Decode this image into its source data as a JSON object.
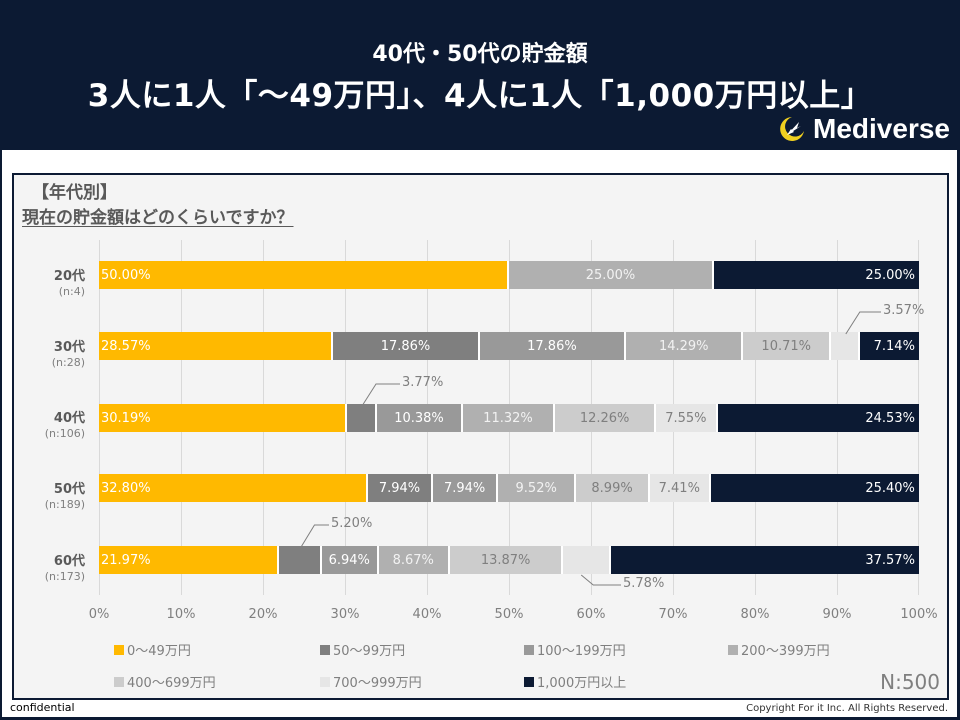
{
  "header": {
    "subtitle": "40代・50代の貯金額",
    "title": "3人に1人「～49万円」、4人に1人「1,000万円以上」",
    "logo_text": "Mediverse"
  },
  "question": {
    "tag": "【年代別】",
    "text": "現在の貯金額はどのくらいですか？"
  },
  "colors": {
    "0-49": "#ffb900",
    "50-99": "#7f7f7f",
    "100-199": "#999999",
    "200-399": "#b0b0b0",
    "400-699": "#cccccc",
    "700-999": "#e6e6e6",
    "1000+": "#0c1a33"
  },
  "chart_data": {
    "type": "bar",
    "orientation": "horizontal",
    "stacked": "100%",
    "title": "現在の貯金額はどのくらいですか？",
    "categories": [
      "20代 (n:4)",
      "30代 (n:28)",
      "40代 (n:106)",
      "50代 (n:189)",
      "60代 (n:173)"
    ],
    "series": [
      {
        "name": "0～49万円",
        "values": [
          50.0,
          28.57,
          30.19,
          32.8,
          21.97
        ]
      },
      {
        "name": "50～99万円",
        "values": [
          0,
          17.86,
          3.77,
          7.94,
          5.2
        ]
      },
      {
        "name": "100～199万円",
        "values": [
          0,
          17.86,
          10.38,
          7.94,
          6.94
        ]
      },
      {
        "name": "200～399万円",
        "values": [
          25.0,
          14.29,
          11.32,
          9.52,
          8.67
        ]
      },
      {
        "name": "400～699万円",
        "values": [
          0,
          10.71,
          12.26,
          8.99,
          13.87
        ]
      },
      {
        "name": "700～999万円",
        "values": [
          0,
          3.57,
          7.55,
          7.41,
          5.78
        ]
      },
      {
        "name": "1,000万円以上",
        "values": [
          25.0,
          7.14,
          24.53,
          25.4,
          37.57
        ]
      }
    ],
    "xlabel": "",
    "ylabel": "",
    "xlim": [
      0,
      100
    ],
    "xticks": [
      "0%",
      "10%",
      "20%",
      "30%",
      "40%",
      "50%",
      "60%",
      "70%",
      "80%",
      "90%",
      "100%"
    ],
    "grid": true,
    "legend_position": "bottom",
    "total_n": "N:500"
  },
  "rows": [
    {
      "age": "20代",
      "n": "(n:4)"
    },
    {
      "age": "30代",
      "n": "(n:28)"
    },
    {
      "age": "40代",
      "n": "(n:106)"
    },
    {
      "age": "50代",
      "n": "(n:189)"
    },
    {
      "age": "60代",
      "n": "(n:173)"
    }
  ],
  "legend": [
    {
      "label": "0～49万円"
    },
    {
      "label": "50～99万円"
    },
    {
      "label": "100～199万円"
    },
    {
      "label": "200～399万円"
    },
    {
      "label": "400～699万円"
    },
    {
      "label": "700～999万円"
    },
    {
      "label": "1,000万円以上"
    }
  ],
  "footer": {
    "n_total": "N:500",
    "confidential": "confidential",
    "copyright": "Copyright For it Inc. All Rights Reserved."
  }
}
